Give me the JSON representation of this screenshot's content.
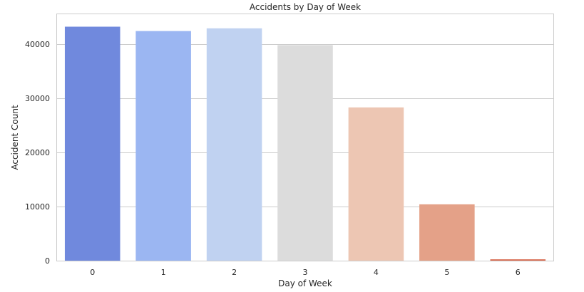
{
  "chart_data": {
    "type": "bar",
    "title": "Accidents by Day of Week",
    "xlabel": "Day of Week",
    "ylabel": "Accident Count",
    "categories": [
      "0",
      "1",
      "2",
      "3",
      "4",
      "5",
      "6"
    ],
    "values": [
      43200,
      42400,
      42900,
      39800,
      28300,
      10400,
      250
    ],
    "colors": [
      "#7089dd",
      "#9bb6f2",
      "#c0d2f1",
      "#dcdcdc",
      "#edc6b3",
      "#e4a188",
      "#d96e54"
    ],
    "yticks": [
      0,
      10000,
      20000,
      30000,
      40000
    ],
    "ytick_labels": [
      "0",
      "10000",
      "20000",
      "30000",
      "40000"
    ],
    "ylim": [
      0,
      45500
    ],
    "grid": "horizontal"
  }
}
